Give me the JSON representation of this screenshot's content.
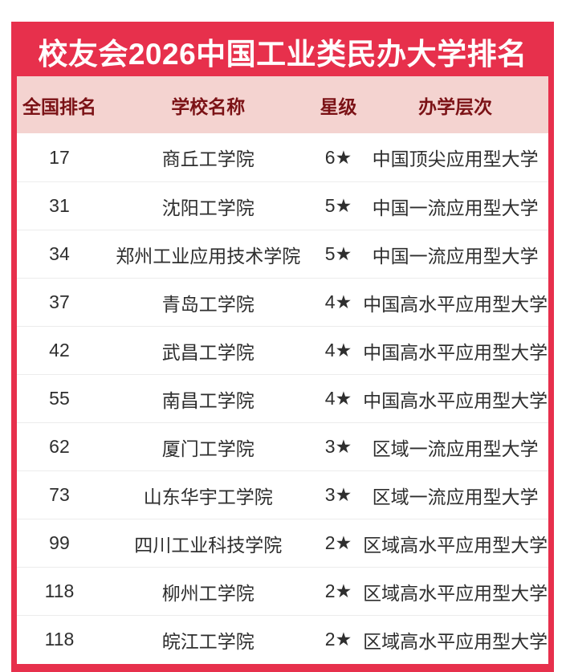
{
  "poster": {
    "title": "校友会2026中国工业类民办大学排名"
  },
  "table": {
    "columns": {
      "rank": "全国排名",
      "school": "学校名称",
      "star": "星级",
      "level": "办学层次"
    },
    "rows": [
      {
        "rank": "17",
        "school": "商丘工学院",
        "star": "6★",
        "level": "中国顶尖应用型大学"
      },
      {
        "rank": "31",
        "school": "沈阳工学院",
        "star": "5★",
        "level": "中国一流应用型大学"
      },
      {
        "rank": "34",
        "school": "郑州工业应用技术学院",
        "star": "5★",
        "level": "中国一流应用型大学"
      },
      {
        "rank": "37",
        "school": "青岛工学院",
        "star": "4★",
        "level": "中国高水平应用型大学"
      },
      {
        "rank": "42",
        "school": "武昌工学院",
        "star": "4★",
        "level": "中国高水平应用型大学"
      },
      {
        "rank": "55",
        "school": "南昌工学院",
        "star": "4★",
        "level": "中国高水平应用型大学"
      },
      {
        "rank": "62",
        "school": "厦门工学院",
        "star": "3★",
        "level": "区域一流应用型大学"
      },
      {
        "rank": "73",
        "school": "山东华宇工学院",
        "star": "3★",
        "level": "区域一流应用型大学"
      },
      {
        "rank": "99",
        "school": "四川工业科技学院",
        "star": "2★",
        "level": "区域高水平应用型大学"
      },
      {
        "rank": "118",
        "school": "柳州工学院",
        "star": "2★",
        "level": "区域高水平应用型大学"
      },
      {
        "rank": "118",
        "school": "皖江工学院",
        "star": "2★",
        "level": "区域高水平应用型大学"
      }
    ]
  },
  "colors": {
    "accent_red": "#e7304c",
    "header_bg": "#f4d3d0",
    "header_text": "#7b1216",
    "row_text": "#2e2e2e",
    "divider": "#ececec"
  }
}
